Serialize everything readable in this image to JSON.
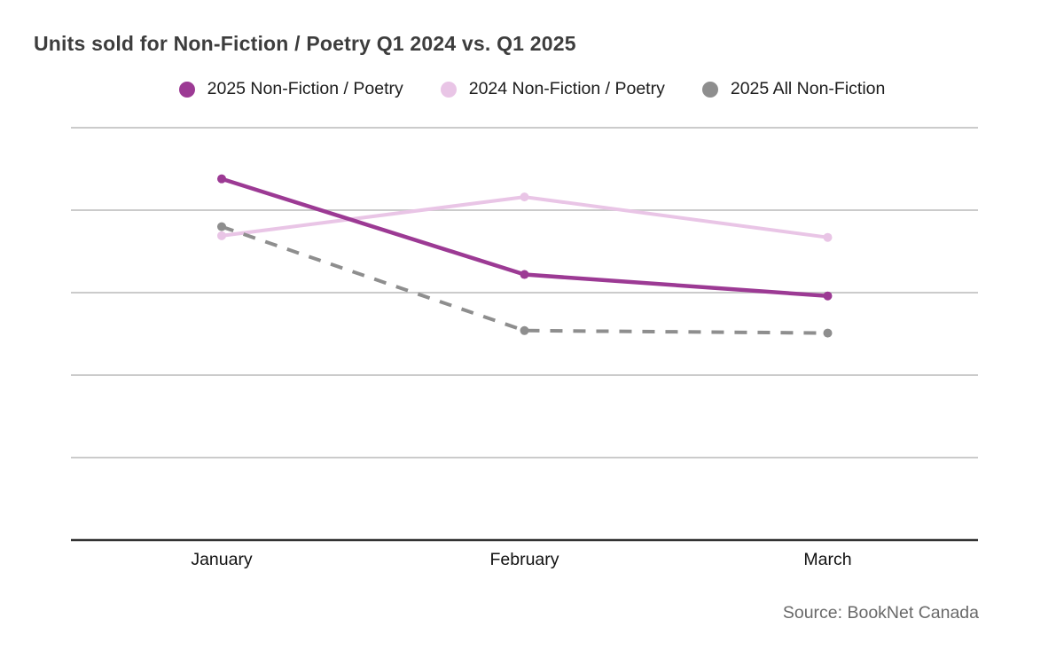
{
  "page": {
    "title": "Units sold for Non-Fiction / Poetry Q1 2024 vs. Q1 2025",
    "source": "Source: BookNet Canada"
  },
  "colors": {
    "background": "#ffffff",
    "title_text": "#3d3d3d",
    "legend_text": "#1c1c1c",
    "axis_label_text": "#111111",
    "source_text": "#696969",
    "gridline": "#cbcbcb",
    "axis_line": "#333333",
    "series_purple": "#9c3a94",
    "series_pink": "#e9c5e6",
    "series_gray": "#8e8e8e"
  },
  "chart_data": {
    "type": "line",
    "title": "Units sold for Non-Fiction / Poetry Q1 2024 vs. Q1 2025",
    "categories": [
      "January",
      "February",
      "March"
    ],
    "series": [
      {
        "name": "2025 Non-Fiction / Poetry",
        "color": "#9c3a94",
        "line_style": "solid",
        "values": [
          4.38,
          3.22,
          2.96
        ]
      },
      {
        "name": "2024 Non-Fiction / Poetry",
        "color": "#e9c5e6",
        "line_style": "solid",
        "values": [
          3.69,
          4.16,
          3.67
        ]
      },
      {
        "name": "2025 All Non-Fiction",
        "color": "#8e8e8e",
        "line_style": "dashed",
        "values": [
          3.8,
          2.54,
          2.51
        ]
      }
    ],
    "xlabel": "",
    "ylabel": "",
    "y_axis_labels_visible": false,
    "y_units": "unlabeled gridline units (baseline axis = 0, each gridline = +1)",
    "ylim": [
      0,
      5.5
    ],
    "gridlines": [
      1,
      2,
      3,
      4,
      5
    ],
    "grid": "horizontal-only",
    "legend_position": "top",
    "markers": "filled-circles",
    "source": "Source: BookNet Canada"
  }
}
